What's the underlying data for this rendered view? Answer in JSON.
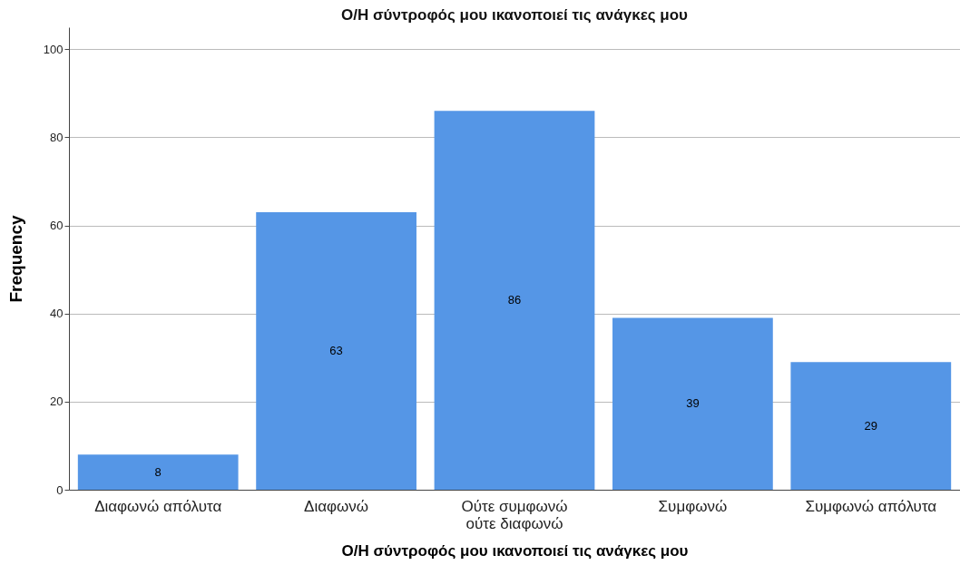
{
  "chart_data": {
    "type": "bar",
    "title": "Ο/Η σύντροφός μου ικανοποιεί τις ανάγκες μου",
    "xlabel": "Ο/Η σύντροφός μου ικανοποιεί τις ανάγκες μου",
    "ylabel": "Frequency",
    "categories": [
      "Διαφωνώ απόλυτα",
      "Διαφωνώ",
      "Ούτε συμφωνώ ούτε διαφωνώ",
      "Συμφωνώ",
      "Συμφωνώ απόλυτα"
    ],
    "values": [
      8,
      63,
      86,
      39,
      29
    ],
    "color": "#5596e6",
    "ylim": [
      0,
      105
    ],
    "yticks": [
      0,
      20,
      40,
      60,
      80,
      100
    ],
    "grid": "y",
    "data_labels": true
  }
}
